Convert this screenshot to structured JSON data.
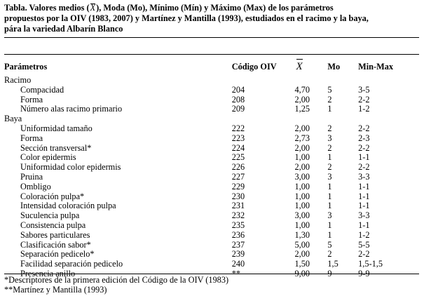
{
  "caption": {
    "prefix": "Tabla. Valores medios (",
    "xbar": "X",
    "rest1": "), Moda (Mo), Mínimo (Mín) y Máximo (Max) de los parámetros",
    "line2": "propuestos por la OIV (1983, 2007) y Martínez y Mantilla (1993), estudiados en el racimo y la baya,",
    "line3": "pára la variedad Albarín Blanco"
  },
  "headers": {
    "param": "Parámetros",
    "code": "Código OIV",
    "mean": "X",
    "mo": "Mo",
    "minmax": "Min-Max"
  },
  "groups": [
    {
      "name": "Racimo",
      "rows": [
        {
          "param": "Compacidad",
          "code": "204",
          "mean": "4,70",
          "mo": "5",
          "minmax": "3-5"
        },
        {
          "param": "Forma",
          "code": "208",
          "mean": "2,00",
          "mo": "2",
          "minmax": "2-2"
        },
        {
          "param": "Número alas racimo primario",
          "code": "209",
          "mean": "1,25",
          "mo": "1",
          "minmax": "1-2"
        }
      ]
    },
    {
      "name": "Baya",
      "rows": [
        {
          "param": "Uniformidad tamaño",
          "code": "222",
          "mean": "2,00",
          "mo": "2",
          "minmax": "2-2"
        },
        {
          "param": "Forma",
          "code": "223",
          "mean": "2,73",
          "mo": "3",
          "minmax": "2-3"
        },
        {
          "param": "Sección transversal*",
          "code": "224",
          "mean": "2,00",
          "mo": "2",
          "minmax": "2-2"
        },
        {
          "param": "Color epidermis",
          "code": "225",
          "mean": "1,00",
          "mo": "1",
          "minmax": "1-1"
        },
        {
          "param": "Uniformidad color epidermis",
          "code": "226",
          "mean": "2,00",
          "mo": "2",
          "minmax": "2-2"
        },
        {
          "param": "Pruina",
          "code": "227",
          "mean": "3,00",
          "mo": "3",
          "minmax": "3-3"
        },
        {
          "param": "Ombligo",
          "code": "229",
          "mean": "1,00",
          "mo": "1",
          "minmax": "1-1"
        },
        {
          "param": "Coloración pulpa*",
          "code": "230",
          "mean": "1,00",
          "mo": "1",
          "minmax": "1-1"
        },
        {
          "param": "Intensidad coloración pulpa",
          "code": "231",
          "mean": "1,00",
          "mo": "1",
          "minmax": "1-1"
        },
        {
          "param": "Suculencia pulpa",
          "code": "232",
          "mean": "3,00",
          "mo": "3",
          "minmax": "3-3"
        },
        {
          "param": "Consistencia pulpa",
          "code": "235",
          "mean": "1,00",
          "mo": "1",
          "minmax": "1-1"
        },
        {
          "param": "Sabores particulares",
          "code": "236",
          "mean": "1,30",
          "mo": "1",
          "minmax": "1-2"
        },
        {
          "param": "Clasificación sabor*",
          "code": "237",
          "mean": "5,00",
          "mo": "5",
          "minmax": "5-5"
        },
        {
          "param": "Separación pedicelo*",
          "code": "239",
          "mean": "2,00",
          "mo": "2",
          "minmax": "2-2"
        },
        {
          "param": "Facilidad separación pedicelo",
          "code": "240",
          "mean": "1,50",
          "mo": "1,5",
          "minmax": "1,5-1,5"
        },
        {
          "param": "Presencia anillo",
          "code": "**",
          "mean": "9,00",
          "mo": "9",
          "minmax": "9-9"
        }
      ]
    }
  ],
  "footnotes": [
    "*Descriptores de la primera edición del Código de la OIV (1983)",
    "**Martínez y Mantilla (1993)"
  ]
}
